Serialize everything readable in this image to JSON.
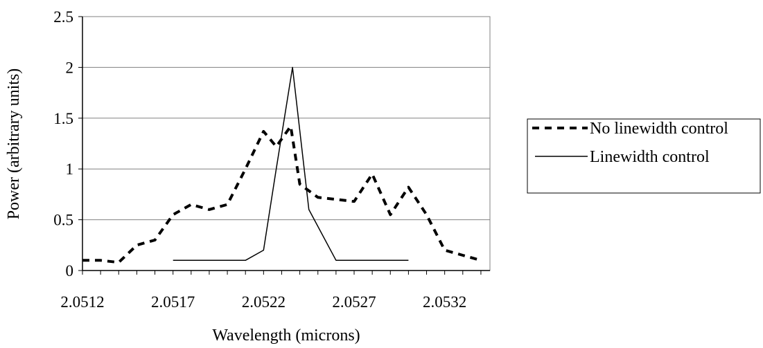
{
  "chart_data": {
    "type": "line",
    "title": "",
    "xlabel": "Wavelength (microns)",
    "ylabel": "Power (arbitrary units)",
    "xlim": [
      2.0512,
      2.05345
    ],
    "ylim": [
      0,
      2.5
    ],
    "x_ticks": [
      2.0512,
      2.0517,
      2.0522,
      2.0527,
      2.0532
    ],
    "x_tick_labels": [
      "2.0512",
      "2.0517",
      "2.0522",
      "2.0527",
      "2.0532"
    ],
    "y_ticks": [
      0,
      0.5,
      1,
      1.5,
      2,
      2.5
    ],
    "y_tick_labels": [
      "0",
      "0.5",
      "1",
      "1.5",
      "2",
      "2.5"
    ],
    "grid": "horizontal",
    "legend_position": "right",
    "series": [
      {
        "name": "No linewidth control",
        "style": "dashed",
        "color": "#000000",
        "x": [
          2.0512,
          2.0513,
          2.0514,
          2.0515,
          2.0516,
          2.0517,
          2.0518,
          2.0519,
          2.052,
          2.0521,
          2.0522,
          2.05227,
          2.05235,
          2.0524,
          2.0525,
          2.0526,
          2.0527,
          2.0528,
          2.0529,
          2.053,
          2.0531,
          2.0532,
          2.0533,
          2.0534
        ],
        "y": [
          0.1,
          0.1,
          0.08,
          0.25,
          0.3,
          0.55,
          0.65,
          0.6,
          0.65,
          1.0,
          1.37,
          1.22,
          1.42,
          0.85,
          0.72,
          0.7,
          0.68,
          0.95,
          0.55,
          0.82,
          0.55,
          0.2,
          0.15,
          0.1
        ]
      },
      {
        "name": "Linewidth control",
        "style": "solid",
        "color": "#000000",
        "x": [
          2.0517,
          2.0518,
          2.0519,
          2.052,
          2.0521,
          2.0522,
          2.05227,
          2.05236,
          2.05245,
          2.0526,
          2.0527,
          2.0528,
          2.0529,
          2.053
        ],
        "y": [
          0.1,
          0.1,
          0.1,
          0.1,
          0.1,
          0.2,
          1.0,
          2.0,
          0.6,
          0.1,
          0.1,
          0.1,
          0.1,
          0.1
        ]
      }
    ]
  }
}
